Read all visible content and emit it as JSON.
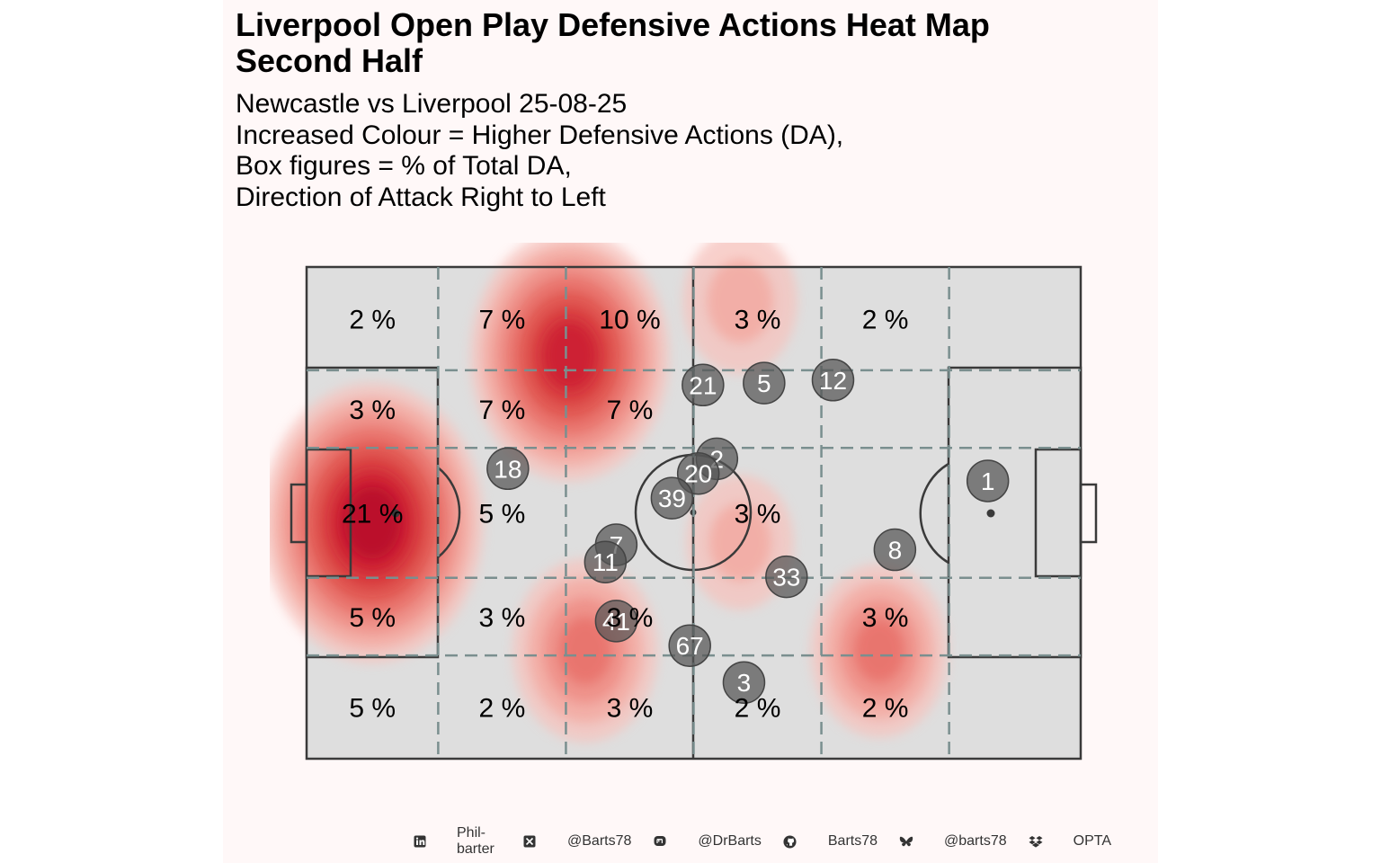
{
  "title_lines": [
    "Liverpool  Open Play Defensive Actions Heat Map",
    "Second Half"
  ],
  "subtitle_lines": [
    "Newcastle vs Liverpool 25-08-25",
    "Increased Colour = Higher Defensive Actions (DA),",
    "Box figures = % of Total DA,",
    "Direction of Attack Right to Left"
  ],
  "colors": {
    "background": "#fff8f8",
    "pitch": "#dedede",
    "heat_low": "#f4b4ae",
    "heat_high": "#c8102e",
    "player_marker": "#555555",
    "zone_lines": "#7a8f8f"
  },
  "chart_data": {
    "type": "heatmap",
    "zone_percentages": [
      {
        "row": 1,
        "values": [
          "2 %",
          "7 %",
          "10 %",
          "3 %",
          "2 %",
          ""
        ]
      },
      {
        "row": 2,
        "values": [
          "3 %",
          "7 %",
          "7 %",
          "",
          "",
          ""
        ]
      },
      {
        "row": 3,
        "values": [
          "21 %",
          "5 %",
          "",
          "3 %",
          "",
          ""
        ]
      },
      {
        "row": 4,
        "values": [
          "5 %",
          "3 %",
          "3 %",
          "",
          "3 %",
          ""
        ]
      },
      {
        "row": 5,
        "values": [
          "5 %",
          "2 %",
          "3 %",
          "2 %",
          "2 %",
          ""
        ]
      }
    ],
    "zone_columns_x": [
      0,
      17,
      33.5,
      50,
      66.5,
      83,
      100
    ],
    "zone_rows_y": [
      0,
      21,
      36.8,
      63.2,
      79,
      100
    ],
    "heat_hotspots": [
      {
        "x": 8.5,
        "y": 52,
        "intensity": 1.0
      },
      {
        "x": 34,
        "y": 18,
        "intensity": 0.85
      },
      {
        "x": 36,
        "y": 78,
        "intensity": 0.5
      },
      {
        "x": 74,
        "y": 78,
        "intensity": 0.45
      },
      {
        "x": 56,
        "y": 7,
        "intensity": 0.3
      },
      {
        "x": 56,
        "y": 56,
        "intensity": 0.25
      }
    ],
    "player_positions": [
      {
        "label": "21",
        "x": 51.2,
        "y": 24
      },
      {
        "label": "5",
        "x": 59.1,
        "y": 23.6
      },
      {
        "label": "12",
        "x": 68,
        "y": 23
      },
      {
        "label": "18",
        "x": 26,
        "y": 41
      },
      {
        "label": "2",
        "x": 53,
        "y": 39
      },
      {
        "label": "20",
        "x": 50.6,
        "y": 42
      },
      {
        "label": "39",
        "x": 47.2,
        "y": 47
      },
      {
        "label": "1",
        "x": 88,
        "y": 43.5
      },
      {
        "label": "7",
        "x": 40,
        "y": 56.5
      },
      {
        "label": "11",
        "x": 38.6,
        "y": 60
      },
      {
        "label": "8",
        "x": 76,
        "y": 57.5
      },
      {
        "label": "33",
        "x": 62,
        "y": 63
      },
      {
        "label": "41",
        "x": 40,
        "y": 72
      },
      {
        "label": "67",
        "x": 49.5,
        "y": 77
      },
      {
        "label": "3",
        "x": 56.5,
        "y": 84.5
      }
    ]
  },
  "footer": {
    "items": [
      {
        "icon": "linkedin-icon",
        "text": "Phil-barter"
      },
      {
        "icon": "x-icon",
        "text": "@Barts78"
      },
      {
        "icon": "mastodon-icon",
        "text": "@DrBarts"
      },
      {
        "icon": "github-icon",
        "text": "Barts78"
      },
      {
        "icon": "bluesky-icon",
        "text": "@barts78"
      },
      {
        "icon": "dropbox-icon",
        "text": "OPTA"
      }
    ]
  }
}
